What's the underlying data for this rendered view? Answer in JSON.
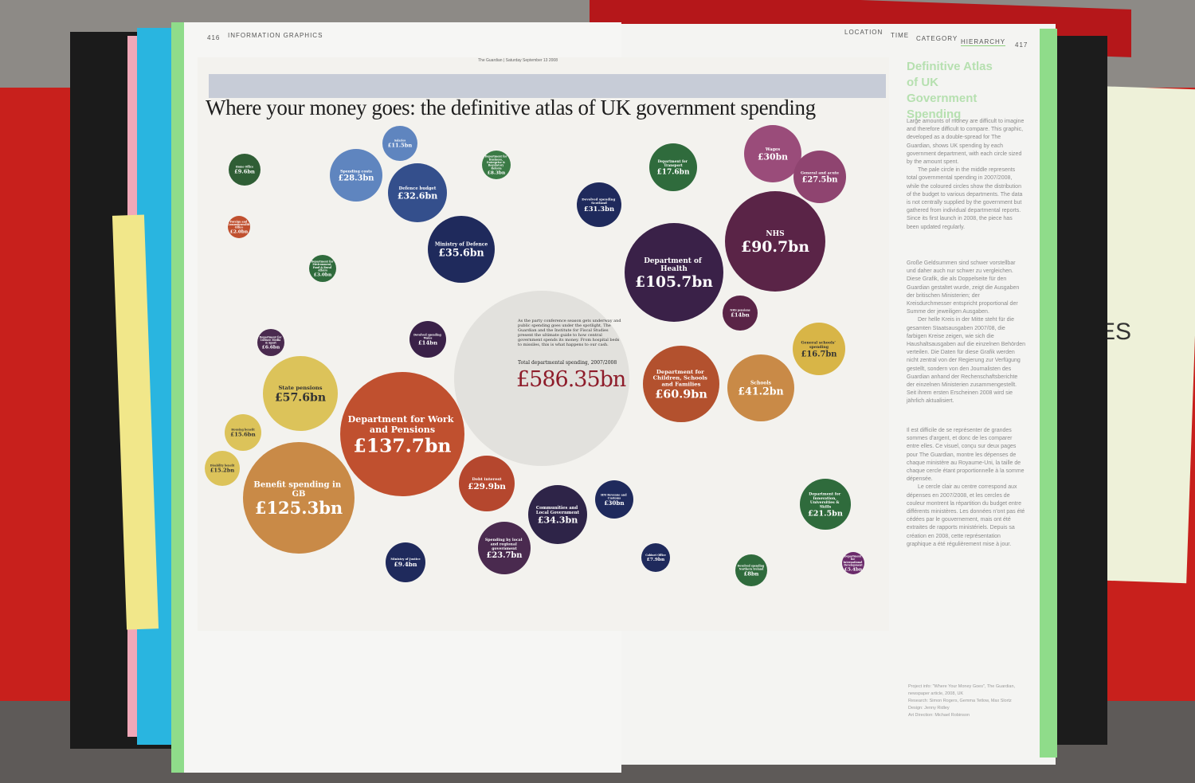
{
  "book": {
    "left_page_number": "416",
    "left_running_head": "INFORMATION GRAPHICS",
    "right_nav": [
      "LOCATION",
      "TIME",
      "CATEGORY",
      "HIERARCHY"
    ],
    "right_nav_active": "HIERARCHY",
    "right_page_number": "417",
    "accent_color": "#8fdc8a"
  },
  "infographic": {
    "newspaper_line": "The Guardian | Saturday September 13 2008",
    "title": "Where your money goes: the definitive atlas of UK government spending",
    "intro": "As the party conference season gets underway and public spending goes under the spotlight, The Guardian and the Institute for Fiscal Studies present the ultimate guide to how central government spends its money. From hospital beds to missiles, this is what happens to our cash.",
    "total_label": "Total departmental spending, 2007/2008",
    "total_value": "£586.35bn",
    "total_color": "#8e1c2a",
    "circles": [
      {
        "label": "Department for Work and Pensions",
        "value": "£137.7bn",
        "color": "#c0502f"
      },
      {
        "label": "Benefit spending in GB",
        "value": "£125.3bn",
        "color": "#c98a47"
      },
      {
        "label": "State pensions",
        "value": "£57.6bn",
        "color": "#dcc35a"
      },
      {
        "label": "Housing benefit",
        "value": "£15.6bn",
        "color": "#dcc35a"
      },
      {
        "label": "Disability benefit",
        "value": "£15.2bn",
        "color": "#dcc35a"
      },
      {
        "label": "Department of Health",
        "value": "£105.7bn",
        "color": "#3a2148"
      },
      {
        "label": "NHS",
        "value": "£90.7bn",
        "color": "#5a2447"
      },
      {
        "label": "Wages",
        "value": "£30bn",
        "color": "#9a4c7a"
      },
      {
        "label": "General and acute",
        "value": "£27.5bn",
        "color": "#8f4470"
      },
      {
        "label": "NHS pensions",
        "value": "£14bn",
        "color": "#5a2447"
      },
      {
        "label": "Department for Children, Schools and Families",
        "value": "£60.9bn",
        "color": "#b3512e"
      },
      {
        "label": "Schools",
        "value": "£41.2bn",
        "color": "#c98a47"
      },
      {
        "label": "General schools' spending",
        "value": "£16.7bn",
        "color": "#d8b547"
      },
      {
        "label": "Ministry of Defence",
        "value": "£35.6bn",
        "color": "#1f2a5c"
      },
      {
        "label": "Defence budget",
        "value": "£32.6bn",
        "color": "#344f8c"
      },
      {
        "label": "Spending costs",
        "value": "£28.3bn",
        "color": "#5f85bf"
      },
      {
        "label": "Salaries",
        "value": "£11.5bn",
        "color": "#5f85bf"
      },
      {
        "label": "Communities and Local Government",
        "value": "£34.3bn",
        "color": "#2e2448"
      },
      {
        "label": "Spending by local and regional government",
        "value": "£23.7bn",
        "color": "#4a2a4f"
      },
      {
        "label": "Devolved spending Scotland",
        "value": "£31.3bn",
        "color": "#1f2a5c"
      },
      {
        "label": "Debt interest",
        "value": "£29.9bn",
        "color": "#b5472e"
      },
      {
        "label": "HM Revenue and Customs",
        "value": "£30bn",
        "color": "#1f2a5c"
      },
      {
        "label": "Department for Innovation, Universities & Skills",
        "value": "£21.5bn",
        "color": "#2f6b3c"
      },
      {
        "label": "Department for Transport",
        "value": "£17.6bn",
        "color": "#2f6b3c"
      },
      {
        "label": "Devolved spending Wales",
        "value": "£14bn",
        "color": "#3a2148"
      },
      {
        "label": "Home Office",
        "value": "£9.6bn",
        "color": "#2f5e35"
      },
      {
        "label": "Ministry of Justice",
        "value": "£9.4bn",
        "color": "#1f2a5c"
      },
      {
        "label": "Devolved spending Northern Ireland",
        "value": "£8bn",
        "color": "#2f6b3c"
      },
      {
        "label": "Cabinet Office",
        "value": "£7.9bn",
        "color": "#1f2a5c"
      },
      {
        "label": "Department for Culture Media & Sport",
        "value": "£6.6bn",
        "color": "#4a2a4f"
      },
      {
        "label": "Department for International Development",
        "value": "£5.4bn",
        "color": "#6a2a6a"
      },
      {
        "label": "Department for Business, Enterprise & Regulatory Reform",
        "value": "£8.3bn",
        "color": "#3a7a45"
      },
      {
        "label": "Department for Environment, Food & Rural Affairs",
        "value": "£3.0bn",
        "color": "#2f6b3c"
      },
      {
        "label": "Foreign and Commonwealth Office",
        "value": "£2.0bn",
        "color": "#c0502f"
      }
    ]
  },
  "sidebar": {
    "title": "Definitive Atlas of UK Government Spending",
    "paragraphs_en": [
      "Large amounts of money are difficult to imagine and therefore difficult to compare. This graphic, developed as a double-spread for The Guardian, shows UK spending by each government department, with each circle sized by the amount spent.",
      "The pale circle in the middle represents total governmental spending in 2007/2008, while the coloured circles show the distribution of the budget to various departments. The data is not centrally supplied by the government but gathered from individual departmental reports. Since its first launch in 2008, the piece has been updated regularly."
    ],
    "paragraphs_de": [
      "Große Geldsummen sind schwer vorstellbar und daher auch nur schwer zu vergleichen. Diese Grafik, die als Doppelseite für den Guardian gestaltet wurde, zeigt die Ausgaben der britischen Ministerien; der Kreisdurchmesser entspricht proportional der Summe der jeweiligen Ausgaben.",
      "Der helle Kreis in der Mitte steht für die gesamten Staatsausgaben 2007/08, die farbigen Kreise zeigen, wie sich die Haushaltsausgaben auf die einzelnen Behörden verteilen. Die Daten für diese Grafik werden nicht zentral von der Regierung zur Verfügung gestellt, sondern von den Journalisten des Guardian anhand der Rechenschaftsberichte der einzelnen Ministerien zusammengestellt. Seit ihrem ersten Erscheinen 2008 wird sie jährlich aktualisiert."
    ],
    "paragraphs_fr": [
      "Il est difficile de se représenter de grandes sommes d'argent, et donc de les comparer entre elles. Ce visuel, conçu sur deux pages pour The Guardian, montre les dépenses de chaque ministère au Royaume-Uni, la taille de chaque cercle étant proportionnelle à la somme dépensée.",
      "Le cercle clair au centre correspond aux dépenses en 2007/2008, et les cercles de couleur montrent la répartition du budget entre différents ministères. Les données n'ont pas été cédées par le gouvernement, mais ont été extraites de rapports ministériels. Depuis sa création en 2008, cette représentation graphique a été régulièrement mise à jour."
    ],
    "credits": [
      "Project info: \"Where Your Money Goes\", The Guardian, newspaper article, 2008, UK",
      "Research: Simon Rogers, Gemma Tetlow, Max Slortz",
      "Design: Jenny Ridley",
      "Art Direction: Michael Robinson"
    ]
  },
  "background_card_text": "ES"
}
